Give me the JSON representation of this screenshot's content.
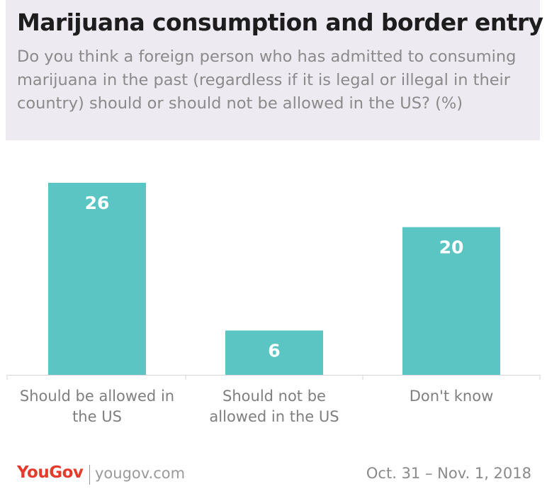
{
  "header": {
    "title": "Marijuana consumption and border entry",
    "subtitle": "Do you think a foreign person who has admitted to consuming marijuana in the past (regardless if it is legal or illegal in their country) should or should not be allowed in the US? (%)"
  },
  "chart_data": {
    "type": "bar",
    "categories": [
      "Should be allowed in the US",
      "Should not be allowed in the US",
      "Don't know"
    ],
    "category_lines": [
      [
        "Should be allowed in",
        "the US"
      ],
      [
        "Should not be",
        "allowed in the US"
      ],
      [
        "Don't know"
      ]
    ],
    "values": [
      26,
      6,
      20
    ],
    "title": "Marijuana consumption and border entry",
    "xlabel": "",
    "ylabel": "",
    "ylim": [
      0,
      26
    ],
    "grid": false,
    "legend": "none",
    "bar_color": "#5bc5c4",
    "label_color": "#ffffff"
  },
  "footer": {
    "brand": "YouGov",
    "site": "yougov.com",
    "date": "Oct. 31 – Nov. 1, 2018",
    "brand_color": "#e43b2c"
  }
}
